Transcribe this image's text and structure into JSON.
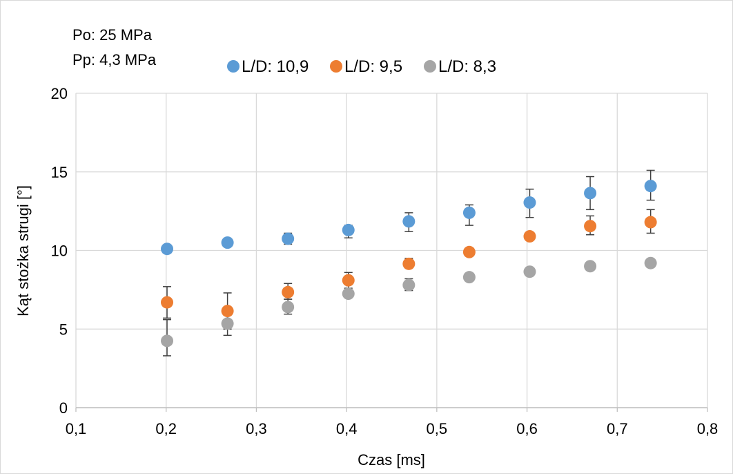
{
  "chart_data": {
    "type": "scatter",
    "title": "",
    "xlabel": "Czas [ms]",
    "ylabel": "Kąt stożka strugi [°]",
    "xlim": [
      0.1,
      0.8
    ],
    "ylim": [
      0,
      20
    ],
    "x_ticks": [
      {
        "value": 0.1,
        "label": "0,1"
      },
      {
        "value": 0.2,
        "label": "0,2"
      },
      {
        "value": 0.3,
        "label": "0,3"
      },
      {
        "value": 0.4,
        "label": "0,4"
      },
      {
        "value": 0.5,
        "label": "0,5"
      },
      {
        "value": 0.6,
        "label": "0,6"
      },
      {
        "value": 0.7,
        "label": "0,7"
      },
      {
        "value": 0.8,
        "label": "0,8"
      }
    ],
    "y_ticks": [
      {
        "value": 0,
        "label": "0"
      },
      {
        "value": 5,
        "label": "5"
      },
      {
        "value": 10,
        "label": "10"
      },
      {
        "value": 15,
        "label": "15"
      },
      {
        "value": 20,
        "label": "20"
      }
    ],
    "grid": true,
    "legend_position": "top",
    "annotations": [
      "Po: 25 MPa",
      "Pp: 4,3 MPa"
    ],
    "series": [
      {
        "name": "L/D: 10,9",
        "color": "#5b9bd5",
        "x": [
          0.201,
          0.268,
          0.335,
          0.402,
          0.469,
          0.536,
          0.603,
          0.67,
          0.737
        ],
        "y": [
          10.1,
          10.5,
          10.75,
          11.3,
          11.85,
          12.4,
          13.05,
          13.65,
          14.1
        ],
        "err_low": [
          10.1,
          10.5,
          10.4,
          10.8,
          11.2,
          11.6,
          12.1,
          12.6,
          13.2
        ],
        "err_high": [
          10.1,
          10.5,
          11.1,
          11.6,
          12.4,
          12.9,
          13.9,
          14.7,
          15.1
        ]
      },
      {
        "name": "L/D: 9,5",
        "color": "#ed7d31",
        "x": [
          0.201,
          0.268,
          0.335,
          0.402,
          0.469,
          0.536,
          0.603,
          0.67,
          0.737
        ],
        "y": [
          6.7,
          6.15,
          7.35,
          8.1,
          9.15,
          9.9,
          10.9,
          11.55,
          11.8
        ],
        "err_low": [
          5.7,
          5.0,
          6.9,
          7.6,
          9.15,
          9.9,
          10.9,
          11.0,
          11.1
        ],
        "err_high": [
          7.7,
          7.3,
          7.9,
          8.6,
          9.5,
          9.9,
          10.9,
          12.2,
          12.6
        ]
      },
      {
        "name": "L/D: 8,3",
        "color": "#a5a5a5",
        "x": [
          0.201,
          0.268,
          0.335,
          0.402,
          0.469,
          0.536,
          0.603,
          0.67,
          0.737
        ],
        "y": [
          4.25,
          5.35,
          6.4,
          7.25,
          7.8,
          8.3,
          8.65,
          9.0,
          9.2
        ],
        "err_low": [
          3.3,
          4.6,
          5.95,
          7.25,
          7.45,
          8.3,
          8.65,
          9.0,
          9.2
        ],
        "err_high": [
          5.6,
          6.0,
          6.9,
          7.25,
          8.2,
          8.3,
          8.65,
          9.0,
          9.2
        ]
      }
    ]
  }
}
